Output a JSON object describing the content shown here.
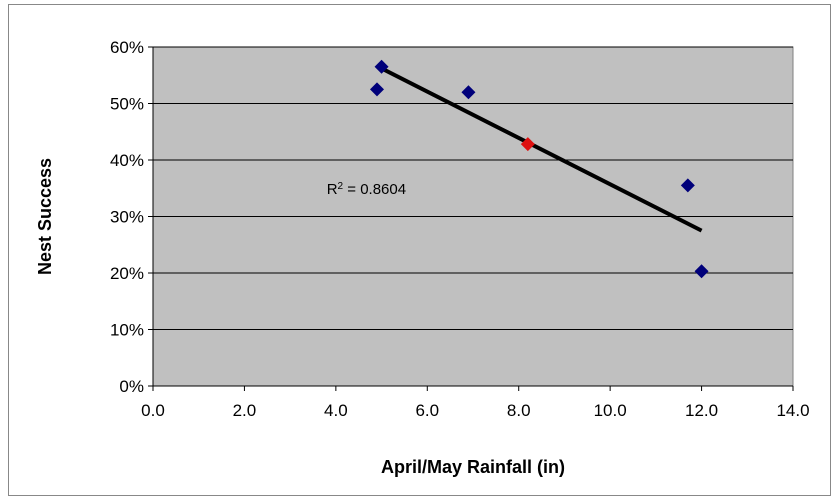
{
  "chart_data": {
    "type": "scatter",
    "title": "",
    "xlabel": "April/May Rainfall (in)",
    "ylabel": "Nest Success",
    "xlim": [
      0,
      14
    ],
    "ylim": [
      0,
      0.6
    ],
    "x_ticks": [
      "0.0",
      "2.0",
      "4.0",
      "6.0",
      "8.0",
      "10.0",
      "12.0",
      "14.0"
    ],
    "y_ticks": [
      "0%",
      "10%",
      "20%",
      "30%",
      "40%",
      "50%",
      "60%"
    ],
    "grid": true,
    "legend": "none",
    "plot_background": "#c0c0c0",
    "series": [
      {
        "marker": "diamond",
        "color": "#00007a",
        "points": [
          {
            "x": 4.9,
            "y": 0.525
          },
          {
            "x": 5.0,
            "y": 0.565
          },
          {
            "x": 6.9,
            "y": 0.52
          },
          {
            "x": 11.7,
            "y": 0.355
          },
          {
            "x": 12.0,
            "y": 0.203
          }
        ]
      },
      {
        "marker": "diamond",
        "color": "#dd1111",
        "points": [
          {
            "x": 8.2,
            "y": 0.428
          }
        ]
      }
    ],
    "trendline": {
      "color": "#000000",
      "from": {
        "x": 5.0,
        "y": 0.562
      },
      "to": {
        "x": 12.0,
        "y": 0.275
      }
    },
    "annotations": [
      {
        "text_base": "R",
        "text_sup": "2",
        "text_rest": " = 0.8604",
        "x": 3.8,
        "y": 0.34
      }
    ]
  }
}
